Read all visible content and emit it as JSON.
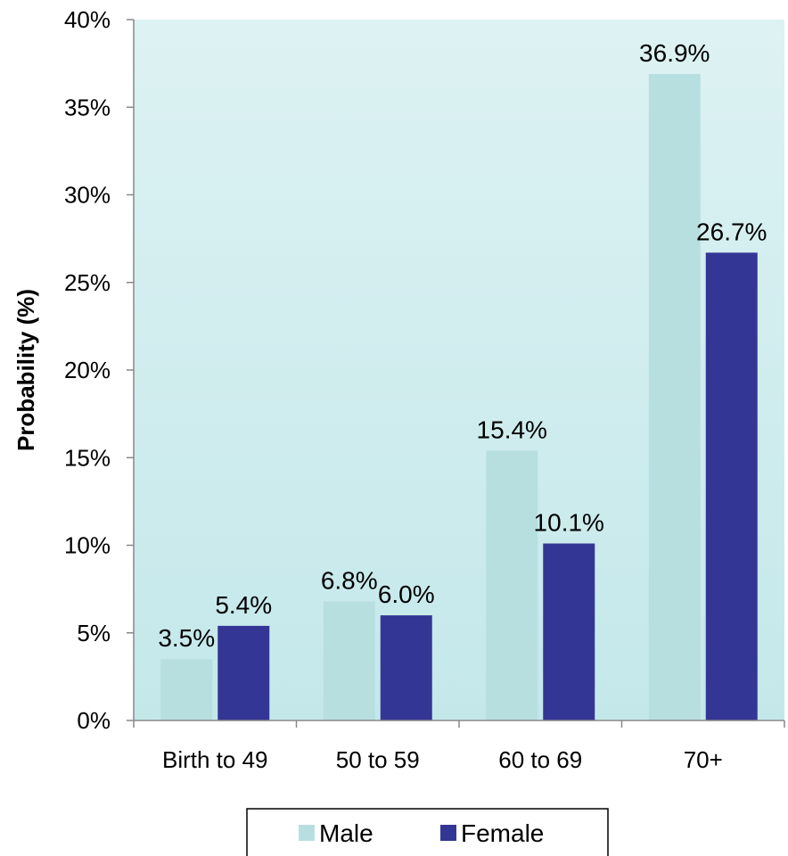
{
  "chart_data": {
    "type": "bar",
    "categories": [
      "Birth to 49",
      "50 to 59",
      "60 to 69",
      "70+"
    ],
    "series": [
      {
        "name": "Male",
        "values": [
          3.5,
          6.8,
          15.4,
          36.9
        ],
        "labels": [
          "3.5%",
          "6.8%",
          "15.4%",
          "36.9%"
        ],
        "color": "#B8DFE0"
      },
      {
        "name": "Female",
        "values": [
          5.4,
          6.0,
          10.1,
          26.7
        ],
        "labels": [
          "5.4%",
          "6.0%",
          "10.1%",
          "26.7%"
        ],
        "color": "#343696"
      }
    ],
    "ylabel": "Probability (%)",
    "xlabel": "",
    "ylim": [
      0,
      40
    ],
    "yticks": [
      0,
      5,
      10,
      15,
      20,
      25,
      30,
      35,
      40
    ],
    "ytick_labels": [
      "0%",
      "5%",
      "10%",
      "15%",
      "20%",
      "25%",
      "30%",
      "35%",
      "40%"
    ],
    "grid": false,
    "legend_position": "bottom",
    "plot_background": [
      "#DDF2F3",
      "#C4E8EA"
    ]
  }
}
